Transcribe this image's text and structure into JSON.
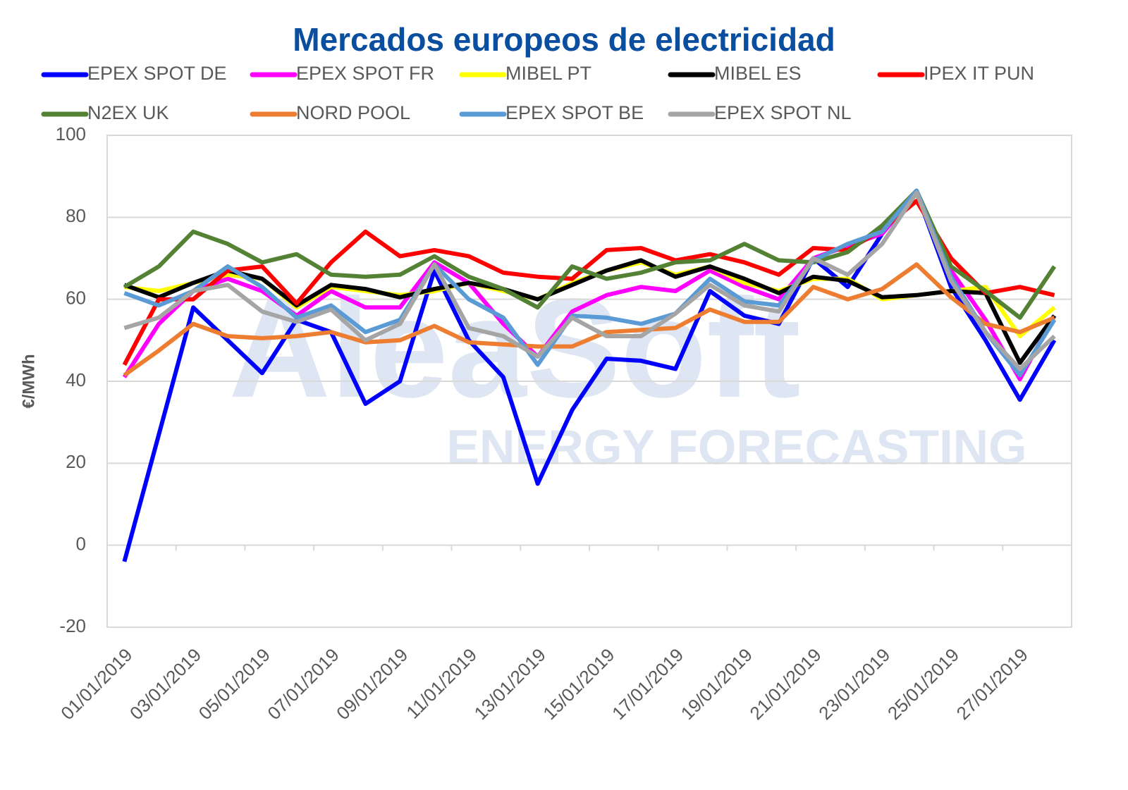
{
  "chart_data": {
    "type": "line",
    "title": "Mercados europeos de electricidad",
    "y_label": "€/MWh",
    "watermark": [
      "AleaSoft",
      "ENERGY FORECASTING"
    ],
    "categories": [
      "01/01/2019",
      null,
      "03/01/2019",
      null,
      "05/01/2019",
      null,
      "07/01/2019",
      null,
      "09/01/2019",
      null,
      "11/01/2019",
      null,
      "13/01/2019",
      null,
      "15/01/2019",
      null,
      "17/01/2019",
      null,
      "19/01/2019",
      null,
      "21/01/2019",
      null,
      "23/01/2019",
      null,
      "25/01/2019",
      null,
      "27/01/2019",
      null
    ],
    "ylim": [
      -20,
      100
    ],
    "yticks": [
      -20,
      0,
      20,
      40,
      60,
      80,
      100
    ],
    "grid": true,
    "series": [
      {
        "name": "EPEX SPOT DE",
        "color": "#0000ff",
        "values": [
          -4,
          27,
          58,
          50,
          42,
          55,
          52,
          34.5,
          40,
          67,
          50,
          41,
          15,
          33,
          45.5,
          45,
          43,
          62,
          56,
          54,
          70,
          63,
          76,
          86,
          63,
          50,
          35.5,
          50
        ]
      },
      {
        "name": "EPEX SPOT FR",
        "color": "#ff00ff",
        "values": [
          41,
          54,
          62,
          65,
          62,
          56,
          62,
          58,
          58,
          69,
          64,
          54,
          46,
          57,
          61,
          63,
          62,
          67,
          63,
          60,
          70,
          73,
          76,
          86,
          67,
          55,
          40.5,
          56
        ]
      },
      {
        "name": "MIBEL PT",
        "color": "#ffff00",
        "values": [
          63,
          62,
          64,
          66,
          65,
          58,
          63,
          62,
          61,
          62,
          64,
          62,
          60,
          64,
          67,
          69,
          66,
          68,
          64,
          62,
          65,
          65,
          60,
          61,
          62,
          63,
          51,
          58
        ]
      },
      {
        "name": "MIBEL ES",
        "color": "#000000",
        "values": [
          63.5,
          60.5,
          64,
          67,
          65,
          58.5,
          63.5,
          62.5,
          60.5,
          62.5,
          64,
          62.5,
          60,
          63.5,
          67,
          69.5,
          65.5,
          68,
          65,
          61.5,
          65.5,
          64.5,
          60.5,
          61,
          62,
          61.5,
          44.5,
          56
        ]
      },
      {
        "name": "IPEX IT PUN",
        "color": "#ff0000",
        "values": [
          44,
          60,
          60,
          67,
          68,
          59,
          69,
          76.5,
          70.5,
          72,
          70.5,
          66.5,
          65.5,
          65,
          72,
          72.5,
          69.5,
          71,
          69,
          66,
          72.5,
          72,
          77,
          84,
          70,
          61.5,
          63,
          61
        ]
      },
      {
        "name": "N2EX UK",
        "color": "#548235",
        "values": [
          63,
          68,
          76.5,
          73.5,
          69,
          71,
          66,
          65.5,
          66,
          70.5,
          65.5,
          62.5,
          58,
          68,
          65,
          66.5,
          69,
          69.5,
          73.5,
          69.5,
          69,
          71.5,
          78,
          86.5,
          68,
          62,
          55.5,
          68
        ]
      },
      {
        "name": "NORD POOL",
        "color": "#ed7d31",
        "values": [
          41.5,
          47.5,
          54,
          51,
          50.5,
          51,
          52,
          49.5,
          50,
          53.5,
          49.5,
          49,
          48.5,
          48.5,
          52,
          52.5,
          53,
          57.5,
          54.5,
          54.5,
          63,
          60,
          62.5,
          68.5,
          60.5,
          54,
          52,
          55.5
        ]
      },
      {
        "name": "EPEX SPOT BE",
        "color": "#5b9bd5",
        "values": [
          61.5,
          58.5,
          62,
          68,
          63,
          55.5,
          58.5,
          52,
          55,
          68.5,
          60,
          55.5,
          44,
          56,
          55.5,
          54,
          56.5,
          65,
          59.5,
          58.5,
          69.5,
          73.5,
          76.5,
          86.5,
          65.5,
          52,
          41.5,
          55
        ]
      },
      {
        "name": "EPEX SPOT NL",
        "color": "#a5a5a5",
        "values": [
          53,
          55.5,
          62,
          63.5,
          57,
          54.5,
          57.5,
          50,
          54,
          68.5,
          53,
          51,
          46,
          55.5,
          51,
          51,
          56.5,
          63.5,
          58.5,
          57,
          70,
          66,
          73.5,
          86,
          64.5,
          52,
          43,
          51
        ]
      }
    ]
  }
}
